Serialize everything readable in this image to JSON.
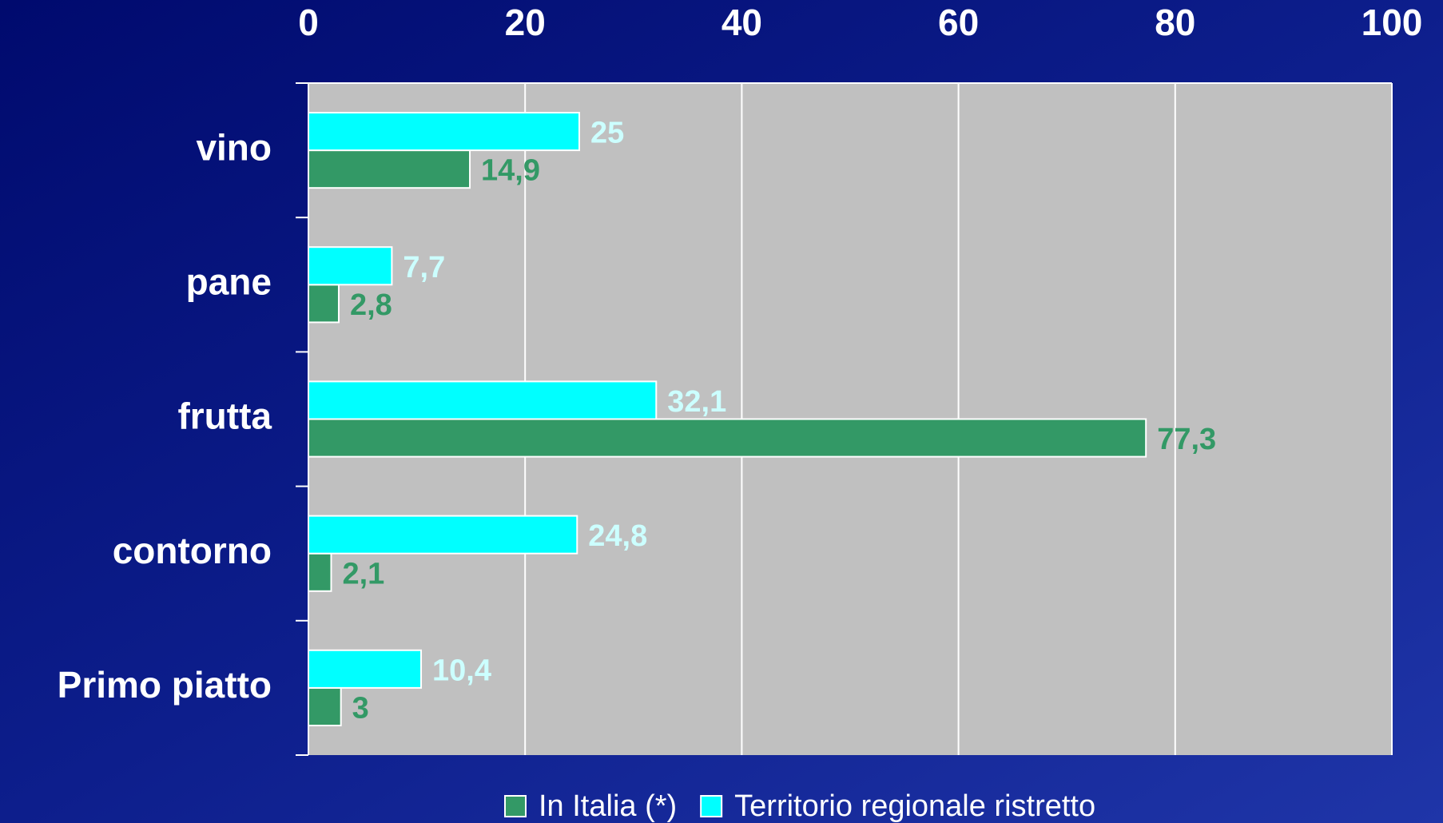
{
  "chart_data": {
    "type": "hbar",
    "categories": [
      "vino",
      "pane",
      "frutta",
      "contorno",
      "Primo piatto"
    ],
    "series": [
      {
        "name": "In Italia (*)",
        "color": "#339966",
        "label_color": "#339966",
        "values": [
          14.9,
          2.8,
          77.3,
          2.1,
          3
        ],
        "value_labels": [
          "14,9",
          "2,8",
          "77,3",
          "2,1",
          "3"
        ]
      },
      {
        "name": "Territorio regionale ristretto",
        "color": "#00ffff",
        "label_color": "#ccffff",
        "values": [
          25,
          7.7,
          32.1,
          24.8,
          10.4
        ],
        "value_labels": [
          "25",
          "7,7",
          "32,1",
          "24,8",
          "10,4"
        ]
      }
    ],
    "xlim": [
      0,
      100
    ],
    "xticks": [
      0,
      20,
      40,
      60,
      80,
      100
    ],
    "grid": true,
    "legend": "bottom"
  }
}
